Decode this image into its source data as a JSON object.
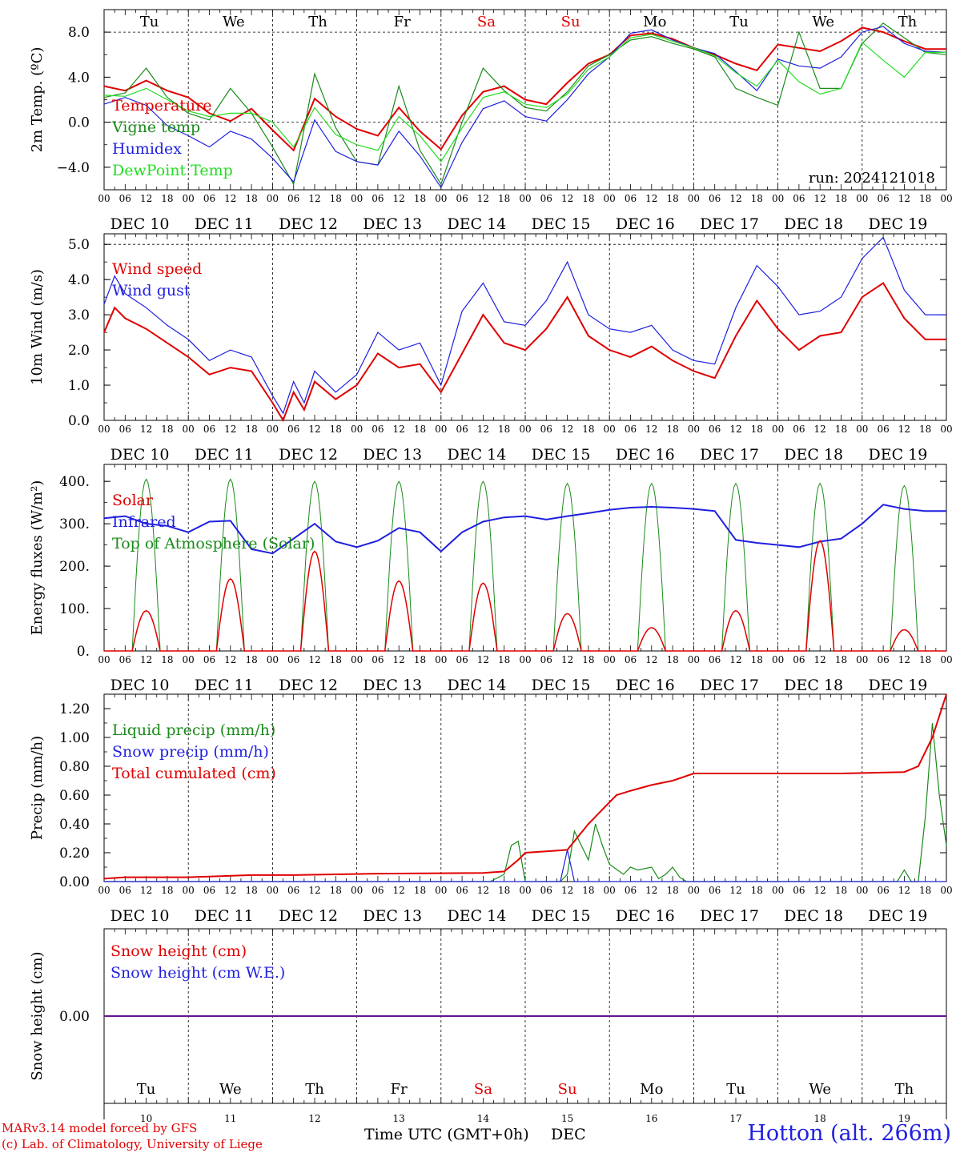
{
  "run_label": "run: 2024121018",
  "credits": [
    "MARv3.14 model forced by GFS",
    "(c) Lab. of Climatology, University of Liege"
  ],
  "station": "Hotton (alt. 266m)",
  "xaxis_title": "Time UTC (GMT+0h)",
  "xaxis_unit": "DEC",
  "days": [
    "Tu",
    "We",
    "Th",
    "Fr",
    "Sa",
    "Su",
    "Mo",
    "Tu",
    "We",
    "Th"
  ],
  "weekend_days": [
    4,
    5
  ],
  "day_numbers": [
    "10",
    "11",
    "12",
    "13",
    "14",
    "15",
    "16",
    "17",
    "18",
    "19"
  ],
  "date_labels": [
    "DEC 10",
    "DEC 11",
    "DEC 12",
    "DEC 13",
    "DEC 14",
    "DEC 15",
    "DEC 16",
    "DEC 17",
    "DEC 18",
    "DEC 19"
  ],
  "hour_ticks": [
    "00",
    "06",
    "12",
    "18"
  ],
  "hour_end": "00",
  "colors": {
    "red": "#e00000",
    "green": "#1a8a1a",
    "blue": "#1f1fe0",
    "lightgreen": "#22dd22",
    "weekend": "#e00000",
    "axis": "#000000"
  },
  "chart_data": [
    {
      "type": "line",
      "ylabel": "2m Temp. (ºC)",
      "ylim": [
        -6,
        10
      ],
      "yticks": [
        8,
        4,
        0,
        -4
      ],
      "ytick_labels": [
        "8.0",
        "4.0",
        "0.0",
        "−4.0"
      ],
      "ref_lines": [
        0,
        8
      ],
      "x_unit": "hours since DEC 10 00 UTC",
      "xlim": [
        0,
        240
      ],
      "series": [
        {
          "name": "Temperature",
          "color": "red",
          "x": [
            0,
            6,
            12,
            18,
            24,
            30,
            36,
            42,
            48,
            54,
            60,
            66,
            72,
            78,
            84,
            90,
            96,
            102,
            108,
            114,
            120,
            126,
            132,
            138,
            144,
            150,
            156,
            162,
            168,
            174,
            180,
            186,
            192,
            198,
            204,
            210,
            216,
            222,
            228,
            234,
            240
          ],
          "y": [
            3.2,
            2.8,
            3.7,
            2.8,
            2.2,
            0.8,
            0.1,
            1.2,
            -0.7,
            -2.5,
            2.1,
            0.5,
            -0.6,
            -1.2,
            1.3,
            -0.8,
            -2.4,
            0.6,
            2.7,
            3.2,
            2.0,
            1.6,
            3.5,
            5.2,
            6.0,
            7.7,
            7.9,
            7.4,
            6.6,
            6.0,
            5.2,
            4.6,
            6.9,
            6.6,
            6.3,
            7.2,
            8.4,
            8.0,
            7.2,
            6.5,
            6.5
          ]
        },
        {
          "name": "Vigne temp",
          "color": "green",
          "x": [
            0,
            6,
            12,
            18,
            24,
            30,
            36,
            42,
            48,
            54,
            60,
            66,
            72,
            78,
            84,
            90,
            96,
            102,
            108,
            114,
            120,
            126,
            132,
            138,
            144,
            150,
            156,
            162,
            168,
            174,
            180,
            186,
            192,
            198,
            204,
            210,
            216,
            222,
            228,
            234,
            240
          ],
          "y": [
            2.2,
            2.6,
            4.8,
            2.2,
            0.8,
            0.2,
            3.0,
            0.8,
            -2.2,
            -5.5,
            4.3,
            -0.5,
            -3.5,
            -3.8,
            3.2,
            -2.5,
            -5.5,
            0.0,
            4.8,
            2.8,
            1.3,
            1.0,
            2.7,
            5.0,
            6.0,
            7.3,
            7.6,
            7.0,
            6.5,
            5.8,
            3.0,
            2.2,
            1.5,
            8.0,
            3.0,
            3.0,
            7.0,
            8.8,
            7.5,
            6.2,
            6.0
          ]
        },
        {
          "name": "Humidex",
          "color": "blue",
          "x": [
            0,
            6,
            12,
            18,
            24,
            30,
            36,
            42,
            48,
            54,
            60,
            66,
            72,
            78,
            84,
            90,
            96,
            102,
            108,
            114,
            120,
            126,
            132,
            138,
            144,
            150,
            156,
            162,
            168,
            174,
            180,
            186,
            192,
            198,
            204,
            210,
            216,
            222,
            228,
            234,
            240
          ],
          "y": [
            1.6,
            2.2,
            1.5,
            -0.3,
            -1.2,
            -2.2,
            -0.8,
            -1.5,
            -3.2,
            -5.3,
            0.2,
            -2.6,
            -3.5,
            -3.8,
            -0.8,
            -3.0,
            -5.8,
            -1.8,
            1.2,
            1.9,
            0.5,
            0.1,
            2.0,
            4.3,
            5.8,
            7.9,
            8.2,
            7.3,
            6.6,
            6.1,
            4.5,
            2.8,
            5.6,
            5.0,
            4.8,
            5.8,
            8.0,
            8.5,
            7.0,
            6.3,
            6.2
          ]
        },
        {
          "name": "DewPoint Temp",
          "color": "lightgreen",
          "x": [
            0,
            6,
            12,
            18,
            24,
            30,
            36,
            42,
            48,
            54,
            60,
            66,
            72,
            78,
            84,
            90,
            96,
            102,
            108,
            114,
            120,
            126,
            132,
            138,
            144,
            150,
            156,
            162,
            168,
            174,
            180,
            186,
            192,
            198,
            204,
            210,
            216,
            222,
            228,
            234,
            240
          ],
          "y": [
            2.4,
            2.3,
            3.0,
            2.0,
            1.0,
            0.5,
            0.8,
            0.8,
            0.0,
            -2.2,
            1.3,
            -1.1,
            -2.0,
            -2.5,
            0.5,
            -1.2,
            -3.5,
            -0.5,
            2.2,
            2.7,
            1.6,
            1.3,
            2.5,
            4.7,
            5.8,
            7.5,
            7.8,
            7.2,
            6.6,
            5.9,
            4.4,
            3.2,
            5.5,
            3.6,
            2.5,
            3.0,
            7.1,
            5.5,
            4.0,
            6.2,
            6.2
          ]
        }
      ]
    },
    {
      "type": "line",
      "ylabel": "10m Wind (m/s)",
      "ylim": [
        0,
        5.3
      ],
      "yticks": [
        5,
        4,
        3,
        2,
        1,
        0
      ],
      "ytick_labels": [
        "5.0",
        "4.0",
        "3.0",
        "2.0",
        "1.0",
        "0.0"
      ],
      "ref_lines": [
        5
      ],
      "x_unit": "hours since DEC 10 00 UTC",
      "xlim": [
        0,
        240
      ],
      "series": [
        {
          "name": "Wind speed",
          "color": "red",
          "x": [
            0,
            3,
            6,
            12,
            18,
            24,
            30,
            36,
            42,
            48,
            51,
            54,
            57,
            60,
            66,
            72,
            78,
            84,
            90,
            96,
            102,
            108,
            114,
            120,
            126,
            132,
            138,
            144,
            150,
            156,
            162,
            168,
            174,
            180,
            186,
            192,
            198,
            204,
            210,
            216,
            222,
            228,
            234,
            240
          ],
          "y": [
            2.5,
            3.2,
            2.9,
            2.6,
            2.2,
            1.8,
            1.3,
            1.5,
            1.4,
            0.5,
            0.0,
            0.8,
            0.3,
            1.1,
            0.6,
            1.0,
            1.9,
            1.5,
            1.6,
            0.8,
            1.9,
            3.0,
            2.2,
            2.0,
            2.6,
            3.5,
            2.4,
            2.0,
            1.8,
            2.1,
            1.7,
            1.4,
            1.2,
            2.4,
            3.4,
            2.6,
            2.0,
            2.4,
            2.5,
            3.5,
            3.9,
            2.9,
            2.3,
            2.3
          ]
        },
        {
          "name": "Wind gust",
          "color": "blue",
          "x": [
            0,
            3,
            6,
            12,
            18,
            24,
            30,
            36,
            42,
            48,
            51,
            54,
            57,
            60,
            66,
            72,
            78,
            84,
            90,
            96,
            102,
            108,
            114,
            120,
            126,
            132,
            138,
            144,
            150,
            156,
            162,
            168,
            174,
            180,
            186,
            192,
            198,
            204,
            210,
            216,
            222,
            228,
            234,
            240
          ],
          "y": [
            3.3,
            4.1,
            3.6,
            3.2,
            2.7,
            2.3,
            1.7,
            2.0,
            1.8,
            0.7,
            0.2,
            1.1,
            0.5,
            1.4,
            0.8,
            1.3,
            2.5,
            2.0,
            2.2,
            1.0,
            3.1,
            3.9,
            2.8,
            2.7,
            3.4,
            4.5,
            3.0,
            2.6,
            2.5,
            2.7,
            2.0,
            1.7,
            1.6,
            3.2,
            4.4,
            3.8,
            3.0,
            3.1,
            3.5,
            4.6,
            5.2,
            3.7,
            3.0,
            3.0
          ]
        }
      ]
    },
    {
      "type": "line",
      "ylabel": "Energy fluxes (W/m²)",
      "ylim": [
        0,
        440
      ],
      "yticks": [
        400,
        300,
        200,
        100,
        0
      ],
      "ytick_labels": [
        "400.",
        "300.",
        "200.",
        "100.",
        "0."
      ],
      "ref_lines": [],
      "x_unit": "hours since DEC 10 00 UTC",
      "xlim": [
        0,
        240
      ],
      "daily_curves": {
        "Solar_peak": [
          95,
          170,
          235,
          165,
          160,
          88,
          55,
          95,
          260,
          50
        ],
        "Top_of_Atmosphere_peak": [
          405,
          405,
          400,
          400,
          400,
          395,
          395,
          395,
          395,
          390
        ],
        "window_hours": [
          8,
          16
        ]
      },
      "series": [
        {
          "name": "Solar",
          "color": "red"
        },
        {
          "name": "Infrared",
          "color": "blue",
          "x": [
            0,
            6,
            12,
            18,
            24,
            30,
            36,
            42,
            48,
            54,
            60,
            66,
            72,
            78,
            84,
            90,
            96,
            102,
            108,
            114,
            120,
            126,
            132,
            138,
            144,
            150,
            156,
            162,
            168,
            174,
            180,
            186,
            192,
            198,
            204,
            210,
            216,
            222,
            228,
            234,
            240
          ],
          "y": [
            313,
            318,
            300,
            295,
            280,
            305,
            307,
            240,
            230,
            265,
            300,
            258,
            245,
            260,
            290,
            280,
            235,
            280,
            305,
            315,
            318,
            310,
            318,
            325,
            333,
            338,
            340,
            338,
            335,
            330,
            262,
            255,
            250,
            245,
            258,
            265,
            300,
            345,
            335,
            330,
            330
          ]
        },
        {
          "name": "Top of Atmosphere (Solar)",
          "color": "green"
        }
      ]
    },
    {
      "type": "line",
      "ylabel": "Precip (mm/h)",
      "ylim": [
        0,
        1.3
      ],
      "yticks": [
        1.2,
        1.0,
        0.8,
        0.6,
        0.4,
        0.2,
        0.0
      ],
      "ytick_labels": [
        "1.20",
        "1.00",
        "0.80",
        "0.60",
        "0.40",
        "0.20",
        "0.00"
      ],
      "ref_lines": [],
      "x_unit": "hours since DEC 10 00 UTC",
      "xlim": [
        0,
        240
      ],
      "series": [
        {
          "name": "Liquid precip (mm/h)",
          "color": "green",
          "x": [
            0,
            110,
            114,
            116,
            118,
            120,
            122,
            130,
            132,
            134,
            136,
            138,
            140,
            142,
            144,
            148,
            150,
            152,
            156,
            158,
            160,
            162,
            164,
            166,
            168,
            172,
            176,
            200,
            226,
            228,
            230,
            232,
            234,
            236,
            238,
            240
          ],
          "y": [
            0.0,
            0.0,
            0.05,
            0.25,
            0.28,
            0.0,
            0.0,
            0.0,
            0.05,
            0.35,
            0.25,
            0.15,
            0.4,
            0.25,
            0.12,
            0.05,
            0.1,
            0.08,
            0.1,
            0.02,
            0.05,
            0.1,
            0.03,
            0.0,
            0.0,
            0.0,
            0.0,
            0.0,
            0.0,
            0.08,
            0.0,
            0.0,
            0.45,
            1.1,
            0.6,
            0.25
          ]
        },
        {
          "name": "Snow precip (mm/h)",
          "color": "blue",
          "x": [
            0,
            120,
            130,
            132,
            134,
            136,
            240
          ],
          "y": [
            0.0,
            0.0,
            0.0,
            0.22,
            0.0,
            0.0,
            0.0
          ]
        },
        {
          "name": "Total cumulated (cm)",
          "color": "red",
          "x": [
            0,
            6,
            24,
            42,
            54,
            78,
            108,
            114,
            118,
            120,
            126,
            132,
            138,
            142,
            146,
            150,
            156,
            162,
            168,
            192,
            210,
            228,
            232,
            236,
            240
          ],
          "y": [
            0.02,
            0.03,
            0.03,
            0.045,
            0.045,
            0.055,
            0.06,
            0.07,
            0.15,
            0.2,
            0.21,
            0.22,
            0.4,
            0.5,
            0.6,
            0.63,
            0.67,
            0.7,
            0.75,
            0.75,
            0.75,
            0.76,
            0.8,
            1.0,
            1.3
          ]
        }
      ]
    },
    {
      "type": "line",
      "ylabel": "Snow height (cm)",
      "ylim": [
        -1,
        1
      ],
      "yticks": [
        0
      ],
      "ytick_labels": [
        "0.00"
      ],
      "ref_lines": [],
      "x_unit": "hours since DEC 10 00 UTC",
      "xlim": [
        0,
        240
      ],
      "series": [
        {
          "name": "Snow height (cm)",
          "color": "red",
          "x": [
            0,
            240
          ],
          "y": [
            0,
            0
          ]
        },
        {
          "name": "Snow height (cm W.E.)",
          "color": "blue",
          "x": [
            0,
            240
          ],
          "y": [
            0,
            0
          ]
        }
      ]
    }
  ]
}
